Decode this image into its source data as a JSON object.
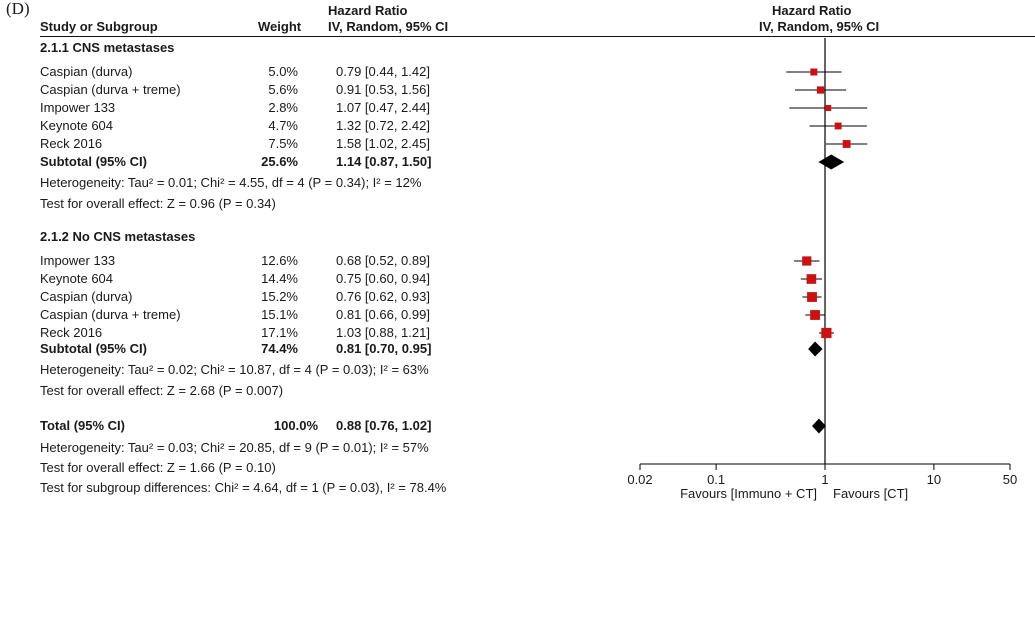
{
  "panel_label": "(D)",
  "headers": {
    "study": "Study or Subgroup",
    "weight": "Weight",
    "hr_title": "Hazard Ratio",
    "hr_method": "IV, Random, 95% CI",
    "plot_title": "Hazard Ratio",
    "plot_method": "IV, Random, 95% CI"
  },
  "subgroups": [
    {
      "title": "2.1.1 CNS metastases",
      "studies": [
        {
          "name": "Caspian (durva)",
          "weight": "5.0%",
          "ci_text": "0.79 [0.44, 1.42]"
        },
        {
          "name": "Caspian (durva + treme)",
          "weight": "5.6%",
          "ci_text": "0.91 [0.53, 1.56]"
        },
        {
          "name": "Impower 133",
          "weight": "2.8%",
          "ci_text": "1.07 [0.47, 2.44]"
        },
        {
          "name": "Keynote 604",
          "weight": "4.7%",
          "ci_text": "1.32 [0.72, 2.42]"
        },
        {
          "name": "Reck 2016",
          "weight": "7.5%",
          "ci_text": "1.58 [1.02, 2.45]"
        }
      ],
      "subtotal": {
        "label": "Subtotal (95% CI)",
        "weight": "25.6%",
        "ci_text": "1.14 [0.87, 1.50]"
      },
      "heterogeneity": "Heterogeneity: Tau² = 0.01; Chi² = 4.55, df = 4 (P = 0.34); I² = 12%",
      "overall_effect": "Test for overall effect: Z = 0.96 (P = 0.34)"
    },
    {
      "title": "2.1.2 No CNS metastases",
      "studies": [
        {
          "name": "Impower 133",
          "weight": "12.6%",
          "ci_text": "0.68 [0.52, 0.89]"
        },
        {
          "name": "Keynote 604",
          "weight": "14.4%",
          "ci_text": "0.75 [0.60, 0.94]"
        },
        {
          "name": "Caspian (durva)",
          "weight": "15.2%",
          "ci_text": "0.76 [0.62, 0.93]"
        },
        {
          "name": "Caspian (durva + treme)",
          "weight": "15.1%",
          "ci_text": "0.81 [0.66, 0.99]"
        },
        {
          "name": "Reck 2016",
          "weight": "17.1%",
          "ci_text": "1.03 [0.88, 1.21]"
        }
      ],
      "subtotal": {
        "label": "Subtotal (95% CI)",
        "weight": "74.4%",
        "ci_text": "0.81 [0.70, 0.95]"
      },
      "heterogeneity": "Heterogeneity: Tau² = 0.02; Chi² = 10.87, df = 4 (P = 0.03); I² = 63%",
      "overall_effect": "Test for overall effect: Z = 2.68 (P = 0.007)"
    }
  ],
  "total": {
    "label": "Total (95% CI)",
    "weight": "100.0%",
    "ci_text": "0.88 [0.76, 1.02]",
    "heterogeneity": "Heterogeneity: Tau² = 0.03; Chi² = 20.85, df = 9 (P = 0.01); I² = 57%",
    "overall_effect": "Test for overall effect: Z = 1.66 (P = 0.10)",
    "subgroup_diff": "Test for subgroup differences: Chi² = 4.64, df = 1 (P = 0.03), I² = 78.4%"
  },
  "axis": {
    "favours_left": "Favours [Immuno + CT]",
    "favours_right": "Favours [CT]"
  },
  "chart_data": {
    "type": "scatter",
    "title": "Hazard Ratio",
    "x_scale": "log",
    "xlim": [
      0.02,
      50
    ],
    "x_ticks": [
      0.02,
      0.1,
      1,
      10,
      50
    ],
    "x_tick_labels": [
      "0.02",
      "0.1",
      "1",
      "10",
      "50"
    ],
    "reference_line": 1,
    "colors": {
      "study_marker": "#cc1111",
      "diamond": "#000000",
      "lines": "#000000"
    },
    "studies": [
      {
        "group": "2.1.1 CNS metastases",
        "name": "Caspian (durva)",
        "hr": 0.79,
        "lo": 0.44,
        "hi": 1.42,
        "weight": 5.0
      },
      {
        "group": "2.1.1 CNS metastases",
        "name": "Caspian (durva + treme)",
        "hr": 0.91,
        "lo": 0.53,
        "hi": 1.56,
        "weight": 5.6
      },
      {
        "group": "2.1.1 CNS metastases",
        "name": "Impower 133",
        "hr": 1.07,
        "lo": 0.47,
        "hi": 2.44,
        "weight": 2.8
      },
      {
        "group": "2.1.1 CNS metastases",
        "name": "Keynote 604",
        "hr": 1.32,
        "lo": 0.72,
        "hi": 2.42,
        "weight": 4.7
      },
      {
        "group": "2.1.1 CNS metastases",
        "name": "Reck 2016",
        "hr": 1.58,
        "lo": 1.02,
        "hi": 2.45,
        "weight": 7.5
      },
      {
        "group": "2.1.2 No CNS metastases",
        "name": "Impower 133",
        "hr": 0.68,
        "lo": 0.52,
        "hi": 0.89,
        "weight": 12.6
      },
      {
        "group": "2.1.2 No CNS metastases",
        "name": "Keynote 604",
        "hr": 0.75,
        "lo": 0.6,
        "hi": 0.94,
        "weight": 14.4
      },
      {
        "group": "2.1.2 No CNS metastases",
        "name": "Caspian (durva)",
        "hr": 0.76,
        "lo": 0.62,
        "hi": 0.93,
        "weight": 15.2
      },
      {
        "group": "2.1.2 No CNS metastases",
        "name": "Caspian (durva + treme)",
        "hr": 0.81,
        "lo": 0.66,
        "hi": 0.99,
        "weight": 15.1
      },
      {
        "group": "2.1.2 No CNS metastases",
        "name": "Reck 2016",
        "hr": 1.03,
        "lo": 0.88,
        "hi": 1.21,
        "weight": 17.1
      }
    ],
    "diamonds": [
      {
        "name": "Subtotal (95% CI)",
        "group": "2.1.1 CNS metastases",
        "hr": 1.14,
        "lo": 0.87,
        "hi": 1.5
      },
      {
        "name": "Subtotal (95% CI)",
        "group": "2.1.2 No CNS metastases",
        "hr": 0.81,
        "lo": 0.7,
        "hi": 0.95
      },
      {
        "name": "Total (95% CI)",
        "group": "Total",
        "hr": 0.88,
        "lo": 0.76,
        "hi": 1.02
      }
    ]
  }
}
